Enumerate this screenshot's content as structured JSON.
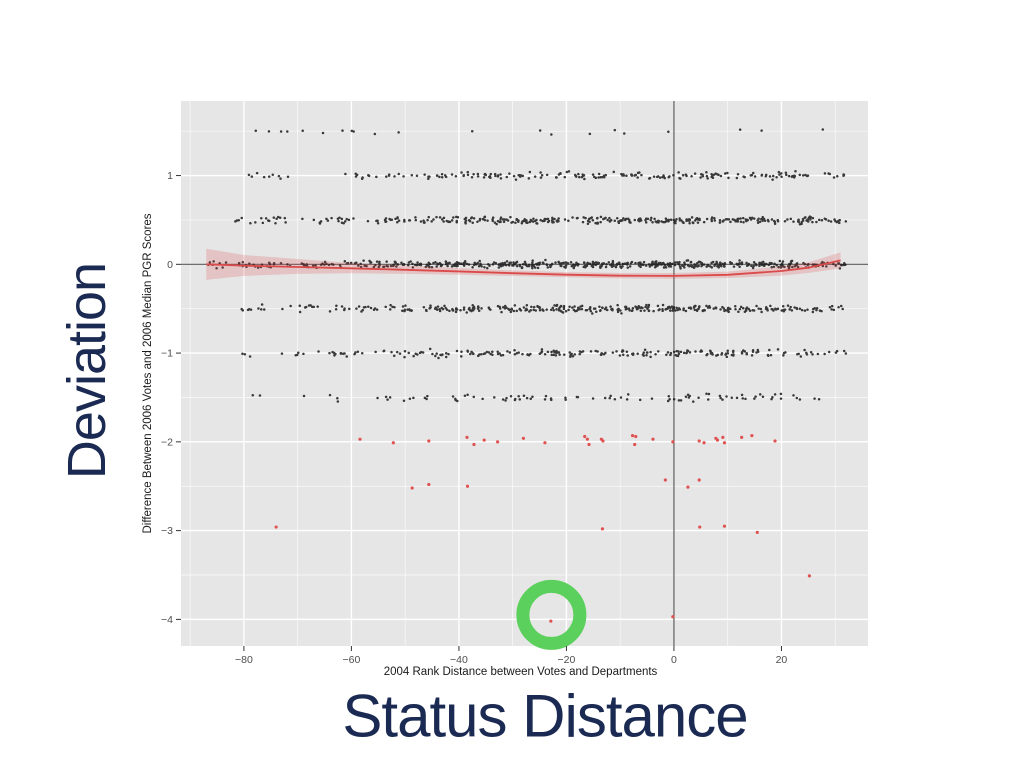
{
  "slide": {
    "left_title": "Deviation",
    "bottom_title": "Status Distance",
    "title_color": "#1B2A52",
    "background": "#FFFFFF"
  },
  "chart_data": {
    "type": "scatter",
    "title": "",
    "xlabel": "2004 Rank Distance between Votes and Departments",
    "ylabel": "Difference Between 2006 Votes and 2006 Median PGR Scores",
    "xlim": [
      -91.7,
      36.1
    ],
    "ylim": [
      -4.3,
      1.84
    ],
    "xticks": {
      "values": [
        -80,
        -60,
        -40,
        -20,
        0,
        20
      ],
      "labels": [
        "−80",
        "−60",
        "−40",
        "−20",
        "0",
        "20"
      ]
    },
    "yticks": {
      "values": [
        1,
        0,
        -1,
        -2,
        -3,
        -4
      ],
      "labels": [
        "1",
        "0",
        "−1",
        "−2",
        "−3",
        "−4"
      ]
    },
    "x_minor": [
      -90,
      -70,
      -50,
      -30,
      -10,
      10,
      30
    ],
    "y_minor": [
      1.5,
      0.5,
      -0.5,
      -1.5,
      -2.5,
      -3.5
    ],
    "grid": "on",
    "legend": "none",
    "panel_bg": "#E6E6E6",
    "grid_color": "#FFFFFF",
    "tick_color": "#333333",
    "tick_label_color": "#4D4D4D",
    "axis_title_color": "#1A1A1A",
    "reference_lines": {
      "vline_x": 0,
      "hline_y": 0,
      "color": "#5A5A5A"
    },
    "point_style": {
      "color": "#1A1A1A",
      "radius": 1.25,
      "opacity": 0.85
    },
    "outlier_style": {
      "color": "#E04B4B",
      "radius": 1.6,
      "opacity": 0.95
    },
    "jitter_seed": 1337,
    "jitter_bands": [
      {
        "y": 1.5,
        "x": [
          -77.6,
          -75.3,
          -73.1,
          -71.9,
          -69.1,
          -65.1,
          -61.6,
          -59.7,
          -59.4,
          -55.6,
          -51.0,
          -37.4,
          -25.1,
          -22.6,
          -15.5,
          -10.8,
          -9.3,
          -0.9,
          12.3,
          16.1,
          27.8
        ]
      },
      {
        "y": 1.0,
        "segments": [
          [
            -81,
            -79,
            1
          ],
          [
            -79,
            -71,
            8
          ],
          [
            -62,
            -49,
            15
          ],
          [
            -49,
            -37,
            22
          ],
          [
            -37,
            -25,
            28
          ],
          [
            -25,
            -13,
            30
          ],
          [
            -13,
            -1,
            27
          ],
          [
            -1,
            11,
            30
          ],
          [
            11,
            23,
            29
          ],
          [
            23,
            26,
            5
          ],
          [
            28,
            32,
            8
          ]
        ]
      },
      {
        "y": 0.5,
        "segments": [
          [
            -83,
            -76,
            8
          ],
          [
            -76,
            -66,
            12
          ],
          [
            -66,
            -54,
            20
          ],
          [
            -54,
            -42,
            32
          ],
          [
            -42,
            -30,
            45
          ],
          [
            -30,
            -18,
            50
          ],
          [
            -18,
            -6,
            52
          ],
          [
            -6,
            6,
            55
          ],
          [
            6,
            18,
            50
          ],
          [
            18,
            26,
            30
          ],
          [
            26,
            29,
            6
          ],
          [
            29,
            32,
            8
          ]
        ]
      },
      {
        "y": 0.0,
        "segments": [
          [
            -88,
            -80,
            12
          ],
          [
            -80,
            -70,
            18
          ],
          [
            -70,
            -58,
            30
          ],
          [
            -58,
            -46,
            45
          ],
          [
            -46,
            -34,
            60
          ],
          [
            -34,
            -22,
            70
          ],
          [
            -22,
            -10,
            75
          ],
          [
            -10,
            2,
            78
          ],
          [
            2,
            14,
            70
          ],
          [
            14,
            24,
            55
          ],
          [
            24,
            29,
            18
          ],
          [
            29,
            32,
            10
          ]
        ]
      },
      {
        "y": -0.5,
        "segments": [
          [
            -81,
            -74,
            9
          ],
          [
            -73,
            -62,
            14
          ],
          [
            -62,
            -50,
            24
          ],
          [
            -50,
            -38,
            38
          ],
          [
            -38,
            -26,
            46
          ],
          [
            -26,
            -14,
            52
          ],
          [
            -14,
            -2,
            55
          ],
          [
            -2,
            10,
            52
          ],
          [
            10,
            22,
            45
          ],
          [
            22,
            28,
            14
          ],
          [
            29,
            32,
            7
          ]
        ]
      },
      {
        "y": -1.0,
        "segments": [
          [
            -82,
            -78,
            3
          ],
          [
            -75,
            -63,
            10
          ],
          [
            -63,
            -51,
            16
          ],
          [
            -51,
            -39,
            24
          ],
          [
            -39,
            -27,
            30
          ],
          [
            -27,
            -15,
            34
          ],
          [
            -15,
            -3,
            32
          ],
          [
            -3,
            9,
            34
          ],
          [
            9,
            21,
            30
          ],
          [
            21,
            27,
            9
          ],
          [
            28,
            32,
            6
          ]
        ]
      },
      {
        "y": -1.5,
        "segments": [
          [
            -80,
            -77,
            2
          ],
          [
            -69,
            -61,
            4
          ],
          [
            -57,
            -47,
            7
          ],
          [
            -47,
            -37,
            10
          ],
          [
            -37,
            -27,
            12
          ],
          [
            -27,
            -17,
            10
          ],
          [
            -17,
            -7,
            8
          ],
          [
            -7,
            1,
            7
          ],
          [
            1,
            9,
            12
          ],
          [
            9,
            19,
            14
          ],
          [
            19,
            24,
            5
          ],
          [
            25,
            28,
            2
          ]
        ]
      }
    ],
    "outlier_points": [
      [
        -58.4,
        -1.97
      ],
      [
        -52.2,
        -2.01
      ],
      [
        -45.6,
        -1.99
      ],
      [
        -38.5,
        -1.95
      ],
      [
        -37.2,
        -2.03
      ],
      [
        -35.3,
        -1.98
      ],
      [
        -32.8,
        -2.0
      ],
      [
        -28.0,
        -1.96
      ],
      [
        -24.0,
        -2.01
      ],
      [
        -16.6,
        -1.94
      ],
      [
        -16.1,
        -1.97
      ],
      [
        -15.8,
        -2.03
      ],
      [
        -13.5,
        -1.97
      ],
      [
        -13.2,
        -1.99
      ],
      [
        -7.7,
        -1.93
      ],
      [
        -7.3,
        -2.03
      ],
      [
        -7.1,
        -1.94
      ],
      [
        -3.9,
        -1.97
      ],
      [
        -0.2,
        -2.0
      ],
      [
        4.7,
        -1.99
      ],
      [
        5.6,
        -2.01
      ],
      [
        7.8,
        -1.96
      ],
      [
        8.1,
        -1.98
      ],
      [
        9.1,
        -1.95
      ],
      [
        9.4,
        -2.01
      ],
      [
        12.6,
        -1.95
      ],
      [
        14.5,
        -1.93
      ],
      [
        18.8,
        -1.99
      ],
      [
        -48.7,
        -2.52
      ],
      [
        -45.6,
        -2.48
      ],
      [
        -38.4,
        -2.5
      ],
      [
        -1.6,
        -2.43
      ],
      [
        2.6,
        -2.51
      ],
      [
        4.7,
        -2.43
      ],
      [
        -74.0,
        -2.96
      ],
      [
        -13.3,
        -2.98
      ],
      [
        4.8,
        -2.96
      ],
      [
        9.4,
        -2.95
      ],
      [
        15.5,
        -3.02
      ],
      [
        25.2,
        -3.51
      ],
      [
        -0.2,
        -3.97
      ],
      [
        -22.9,
        -4.02
      ]
    ],
    "smooth": {
      "color": "#DB4A4A",
      "ribbon_fill": "rgba(219,74,74,0.22)",
      "x": [
        -87,
        -80,
        -70,
        -60,
        -50,
        -40,
        -30,
        -20,
        -10,
        0,
        10,
        20,
        25,
        31
      ],
      "y": [
        0.0,
        -0.015,
        -0.03,
        -0.045,
        -0.062,
        -0.08,
        -0.1,
        -0.117,
        -0.128,
        -0.13,
        -0.118,
        -0.075,
        -0.038,
        0.045
      ],
      "upper": [
        0.175,
        0.105,
        0.06,
        0.015,
        -0.015,
        -0.042,
        -0.068,
        -0.088,
        -0.098,
        -0.098,
        -0.082,
        -0.022,
        0.022,
        0.135
      ],
      "lower": [
        -0.175,
        -0.13,
        -0.108,
        -0.1,
        -0.108,
        -0.118,
        -0.132,
        -0.146,
        -0.158,
        -0.162,
        -0.154,
        -0.128,
        -0.098,
        -0.045
      ]
    },
    "annotation_circle": {
      "x": -22.8,
      "y": -3.95,
      "outer_radius_px": 35,
      "stroke_px": 13,
      "color": "#5CD05C",
      "marks_point": [
        -22.9,
        -4.02
      ]
    }
  }
}
